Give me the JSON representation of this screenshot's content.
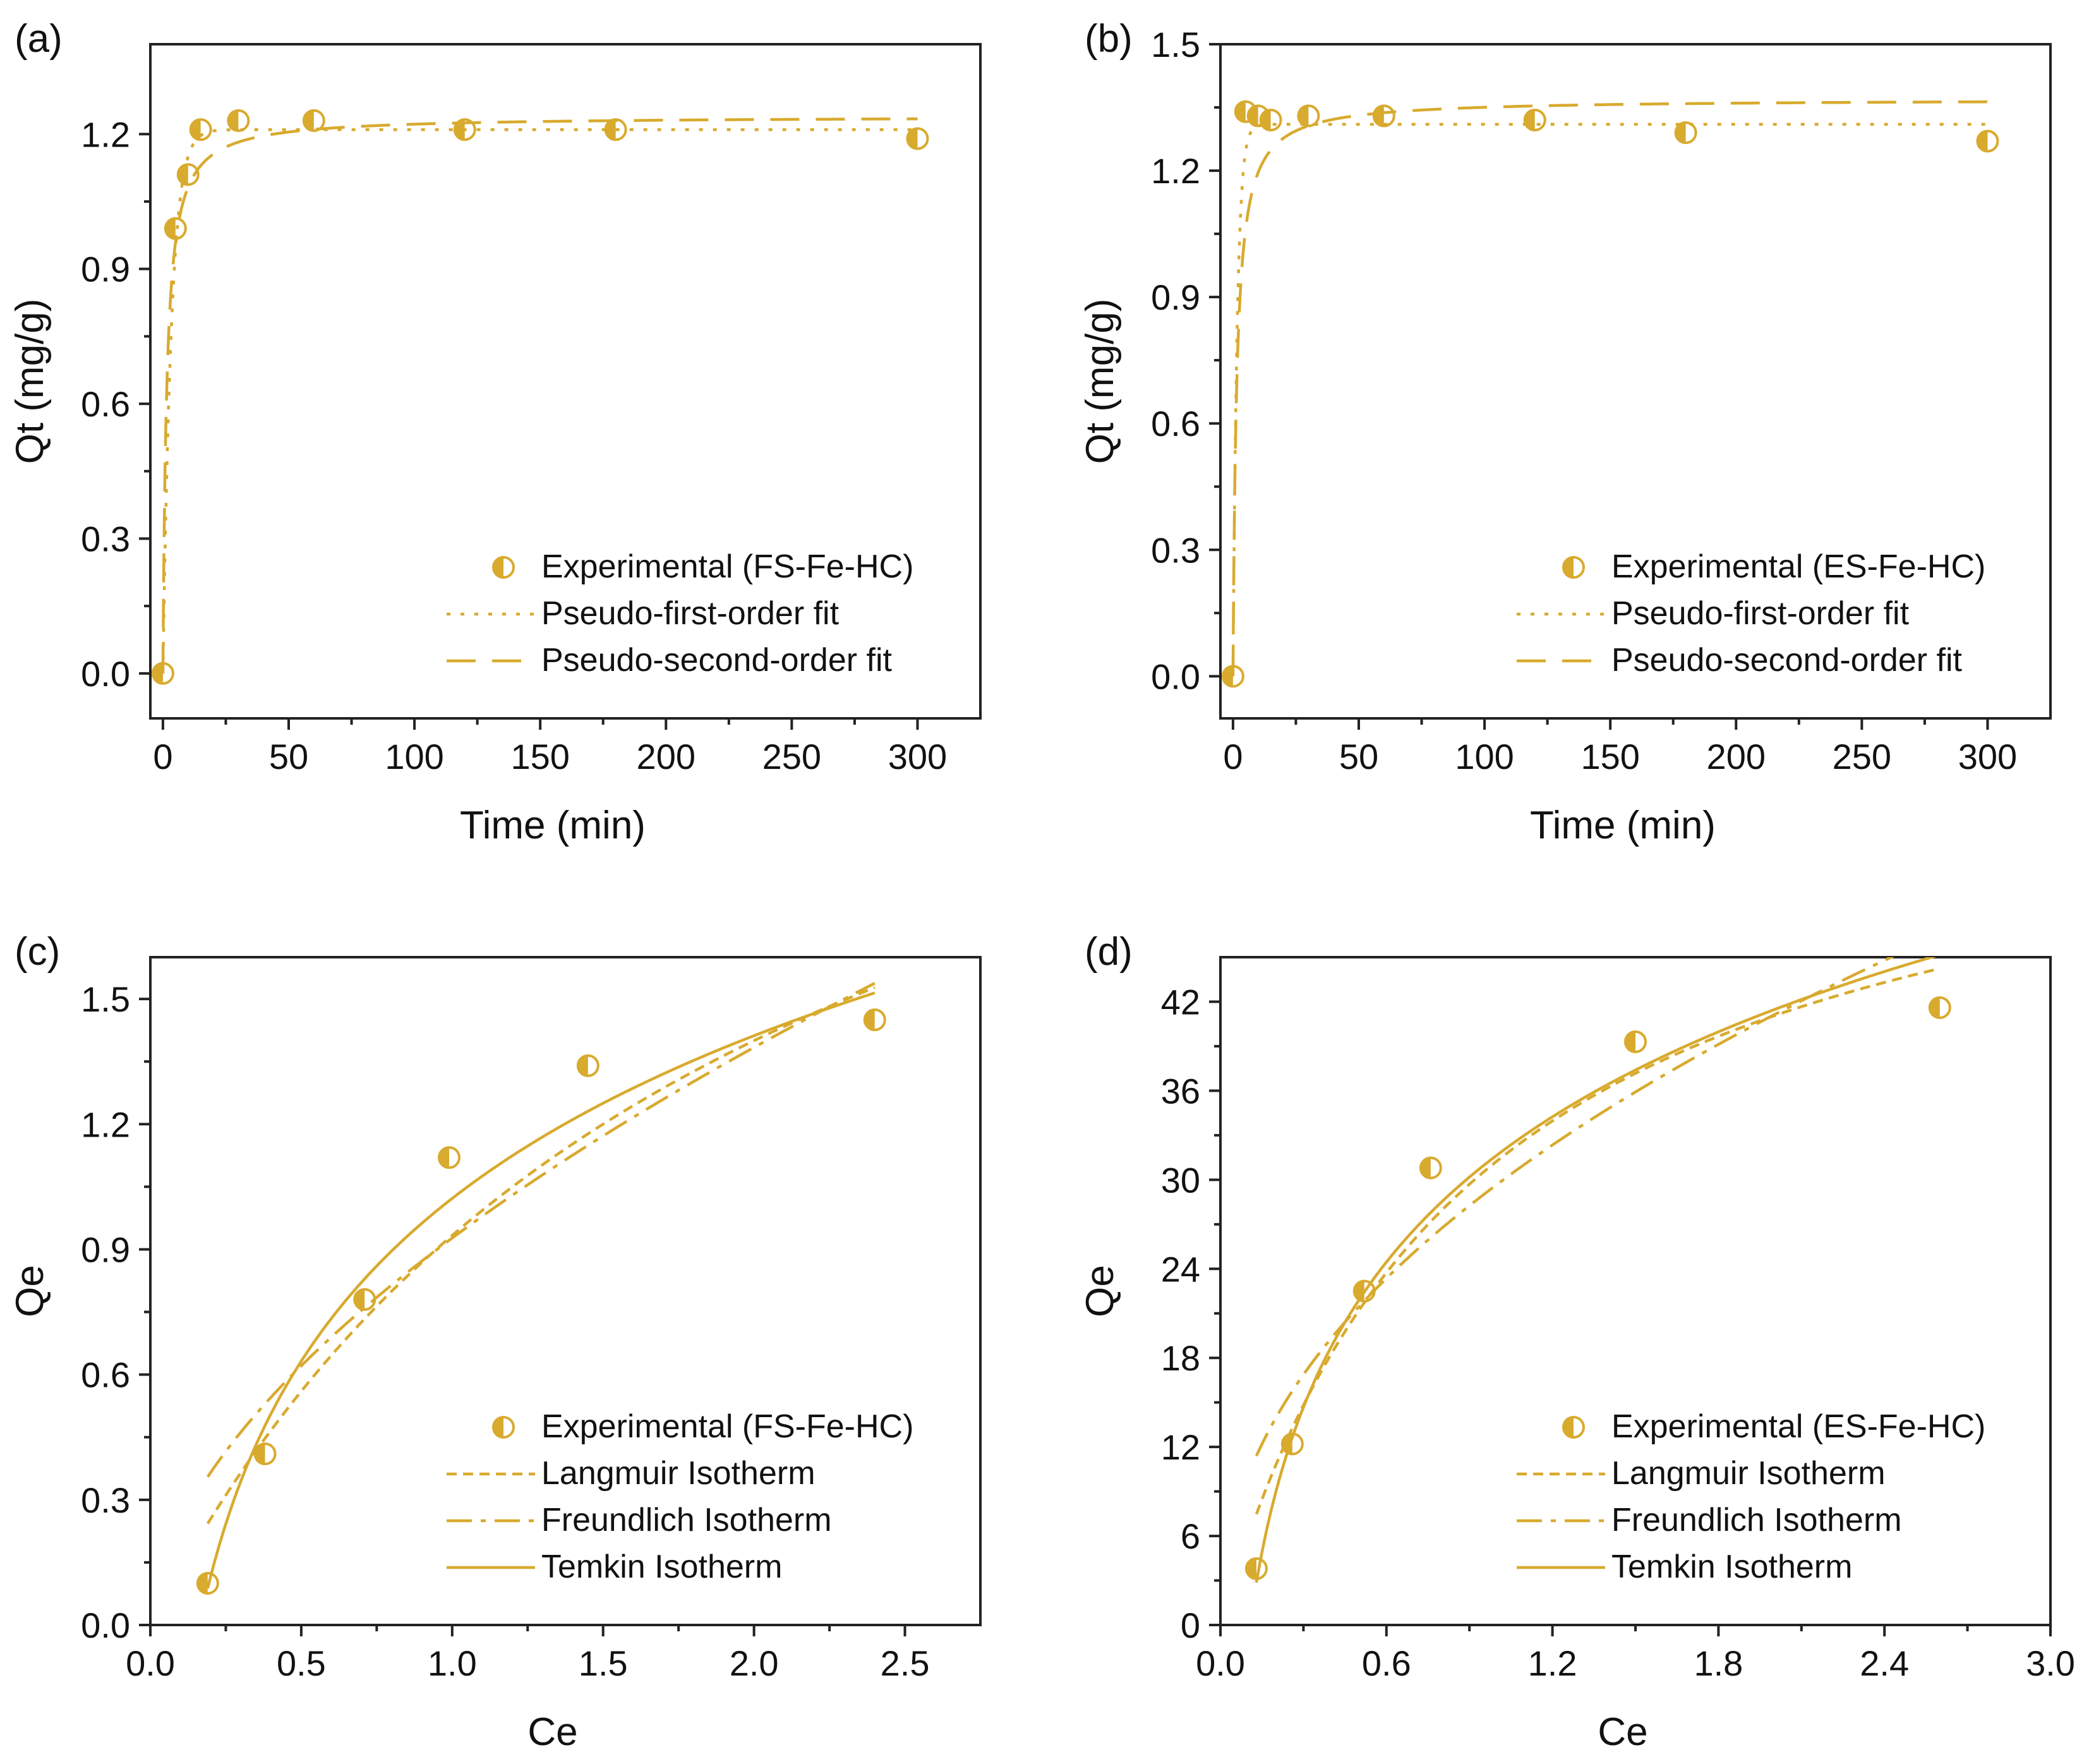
{
  "colors": {
    "series": "#D8AA2E",
    "axis": "#222222",
    "text": "#111111"
  },
  "chart_data": [
    {
      "panel_label": "(a)",
      "type": "scatter",
      "xlabel": "Time (min)",
      "ylabel": "Qt (mg/g)",
      "xlim": [
        -5,
        325
      ],
      "ylim": [
        -0.1,
        1.4
      ],
      "xticks": [
        0,
        50,
        100,
        150,
        200,
        250,
        300
      ],
      "xtick_labels": [
        "0",
        "50",
        "100",
        "150",
        "200",
        "250",
        "300"
      ],
      "yticks": [
        0.0,
        0.3,
        0.6,
        0.9,
        1.2
      ],
      "ytick_labels": [
        "0.0",
        "0.3",
        "0.6",
        "0.9",
        "1.2"
      ],
      "legend_position": "lower-right",
      "series": [
        {
          "name": "Experimental (FS-Fe-HC)",
          "kind": "points",
          "x": [
            0,
            5,
            10,
            15,
            30,
            60,
            120,
            180,
            300
          ],
          "y": [
            0.0,
            0.99,
            1.11,
            1.21,
            1.23,
            1.23,
            1.21,
            1.21,
            1.19
          ]
        },
        {
          "name": "Pseudo-first-order fit",
          "kind": "pfo",
          "qe": 1.21,
          "k": 0.3
        },
        {
          "name": "Pseudo-second-order fit",
          "kind": "pso",
          "qe": 1.24,
          "k": 0.55
        }
      ]
    },
    {
      "panel_label": "(b)",
      "type": "scatter",
      "xlabel": "Time (min)",
      "ylabel": "Qt (mg/g)",
      "xlim": [
        -5,
        325
      ],
      "ylim": [
        -0.1,
        1.5
      ],
      "xticks": [
        0,
        50,
        100,
        150,
        200,
        250,
        300
      ],
      "xtick_labels": [
        "0",
        "50",
        "100",
        "150",
        "200",
        "250",
        "300"
      ],
      "yticks": [
        0.0,
        0.3,
        0.6,
        0.9,
        1.2,
        1.5
      ],
      "ytick_labels": [
        "0.0",
        "0.3",
        "0.6",
        "0.9",
        "1.2",
        "1.5"
      ],
      "legend_position": "lower-right",
      "series": [
        {
          "name": "Experimental (ES-Fe-HC)",
          "kind": "points",
          "x": [
            0,
            5,
            10,
            15,
            30,
            60,
            120,
            180,
            300
          ],
          "y": [
            0.0,
            1.34,
            1.33,
            1.32,
            1.33,
            1.33,
            1.32,
            1.29,
            1.27
          ]
        },
        {
          "name": "Pseudo-first-order fit",
          "kind": "pfo",
          "qe": 1.31,
          "k": 0.6
        },
        {
          "name": "Pseudo-second-order fit",
          "kind": "pso",
          "qe": 1.37,
          "k": 0.5
        }
      ]
    },
    {
      "panel_label": "(c)",
      "type": "scatter",
      "xlabel": "Ce",
      "ylabel": "Qe",
      "xlim": [
        0.0,
        2.75
      ],
      "ylim": [
        0.0,
        1.6
      ],
      "xticks": [
        0.0,
        0.5,
        1.0,
        1.5,
        2.0,
        2.5
      ],
      "xtick_labels": [
        "0.0",
        "0.5",
        "1.0",
        "1.5",
        "2.0",
        "2.5"
      ],
      "yticks": [
        0.0,
        0.3,
        0.6,
        0.9,
        1.2,
        1.5
      ],
      "ytick_labels": [
        "0.0",
        "0.3",
        "0.6",
        "0.9",
        "1.2",
        "1.5"
      ],
      "legend_position": "lower-right",
      "series": [
        {
          "name": "Experimental (FS-Fe-HC)",
          "kind": "points",
          "x": [
            0.19,
            0.38,
            0.71,
            0.99,
            1.45,
            2.4
          ],
          "y": [
            0.1,
            0.41,
            0.78,
            1.12,
            1.34,
            1.45
          ]
        },
        {
          "name": "Langmuir Isotherm",
          "kind": "langmuir",
          "qm": 2.8,
          "K": 0.5,
          "x_range": [
            0.19,
            2.4
          ]
        },
        {
          "name": "Freundlich Isotherm",
          "kind": "freundlich",
          "Kf": 0.927,
          "n": 1.73,
          "x_range": [
            0.19,
            2.4
          ]
        },
        {
          "name": "Temkin Isotherm",
          "kind": "temkin",
          "a": 1.022,
          "b": 0.5625,
          "x_range": [
            0.19,
            2.4
          ]
        }
      ]
    },
    {
      "panel_label": "(d)",
      "type": "scatter",
      "xlabel": "Ce",
      "ylabel": "Qe",
      "xlim": [
        0.0,
        3.0
      ],
      "ylim": [
        0,
        45
      ],
      "xticks": [
        0.0,
        0.6,
        1.2,
        1.8,
        2.4,
        3.0
      ],
      "xtick_labels": [
        "0.0",
        "0.6",
        "1.2",
        "1.8",
        "2.4",
        "3.0"
      ],
      "yticks": [
        0,
        6,
        12,
        18,
        24,
        30,
        36,
        42
      ],
      "ytick_labels": [
        "0",
        "6",
        "12",
        "18",
        "24",
        "30",
        "36",
        "42"
      ],
      "legend_position": "lower-right",
      "series": [
        {
          "name": "Experimental (ES-Fe-HC)",
          "kind": "points",
          "x": [
            0.13,
            0.26,
            0.52,
            0.76,
            1.5,
            2.6
          ],
          "y": [
            3.8,
            12.2,
            22.5,
            30.8,
            39.3,
            41.6
          ]
        },
        {
          "name": "Langmuir Isotherm",
          "kind": "langmuir",
          "qm": 59.7,
          "K": 1.1,
          "x_range": [
            0.13,
            2.6
          ]
        },
        {
          "name": "Freundlich Isotherm",
          "kind": "freundlich",
          "Kf": 29.69,
          "n": 2.13,
          "x_range": [
            0.13,
            2.6
          ]
        },
        {
          "name": "Temkin Isotherm",
          "kind": "temkin",
          "a": 31.67,
          "b": 14.12,
          "x_range": [
            0.13,
            2.6
          ]
        }
      ]
    }
  ]
}
